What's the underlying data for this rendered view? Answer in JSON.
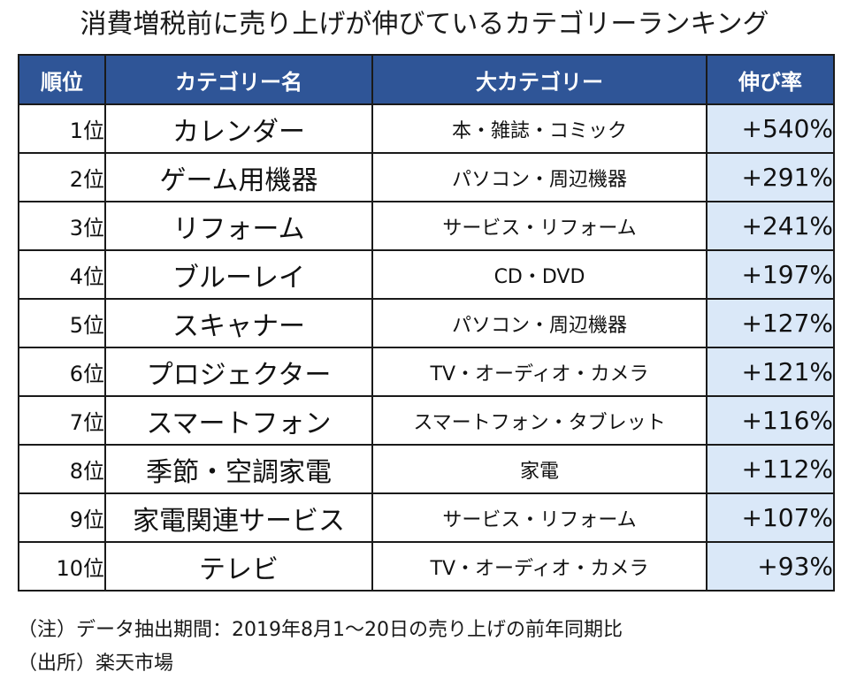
{
  "title": "消費増税前に売り上げが伸びているカテゴリーランキング",
  "header_color": "#2f5597",
  "growth_fill_color": "#dae8f8",
  "chart_data": {
    "type": "table",
    "title": "消費増税前に売り上げが伸びているカテゴリーランキング",
    "columns": [
      "順位",
      "カテゴリー名",
      "大カテゴリー",
      "伸び率"
    ],
    "rows": [
      {
        "rank": "1位",
        "category": "カレンダー",
        "major": "本・雑誌・コミック",
        "growth": "+540%"
      },
      {
        "rank": "2位",
        "category": "ゲーム用機器",
        "major": "パソコン・周辺機器",
        "growth": "+291%"
      },
      {
        "rank": "3位",
        "category": "リフォーム",
        "major": "サービス・リフォーム",
        "growth": "+241%"
      },
      {
        "rank": "4位",
        "category": "ブルーレイ",
        "major": "CD・DVD",
        "growth": "+197%"
      },
      {
        "rank": "5位",
        "category": "スキャナー",
        "major": "パソコン・周辺機器",
        "growth": "+127%"
      },
      {
        "rank": "6位",
        "category": "プロジェクター",
        "major": "TV・オーディオ・カメラ",
        "growth": "+121%"
      },
      {
        "rank": "7位",
        "category": "スマートフォン",
        "major": "スマートフォン・タブレット",
        "growth": "+116%"
      },
      {
        "rank": "8位",
        "category": "季節・空調家電",
        "major": "家電",
        "growth": "+112%"
      },
      {
        "rank": "9位",
        "category": "家電関連サービス",
        "major": "サービス・リフォーム",
        "growth": "+107%"
      },
      {
        "rank": "10位",
        "category": "テレビ",
        "major": "TV・オーディオ・カメラ",
        "growth": "+93%"
      }
    ]
  },
  "notes": {
    "note": "（注）データ抽出期間：2019年8月1～20日の売り上げの前年同期比",
    "source": "（出所）楽天市場"
  }
}
